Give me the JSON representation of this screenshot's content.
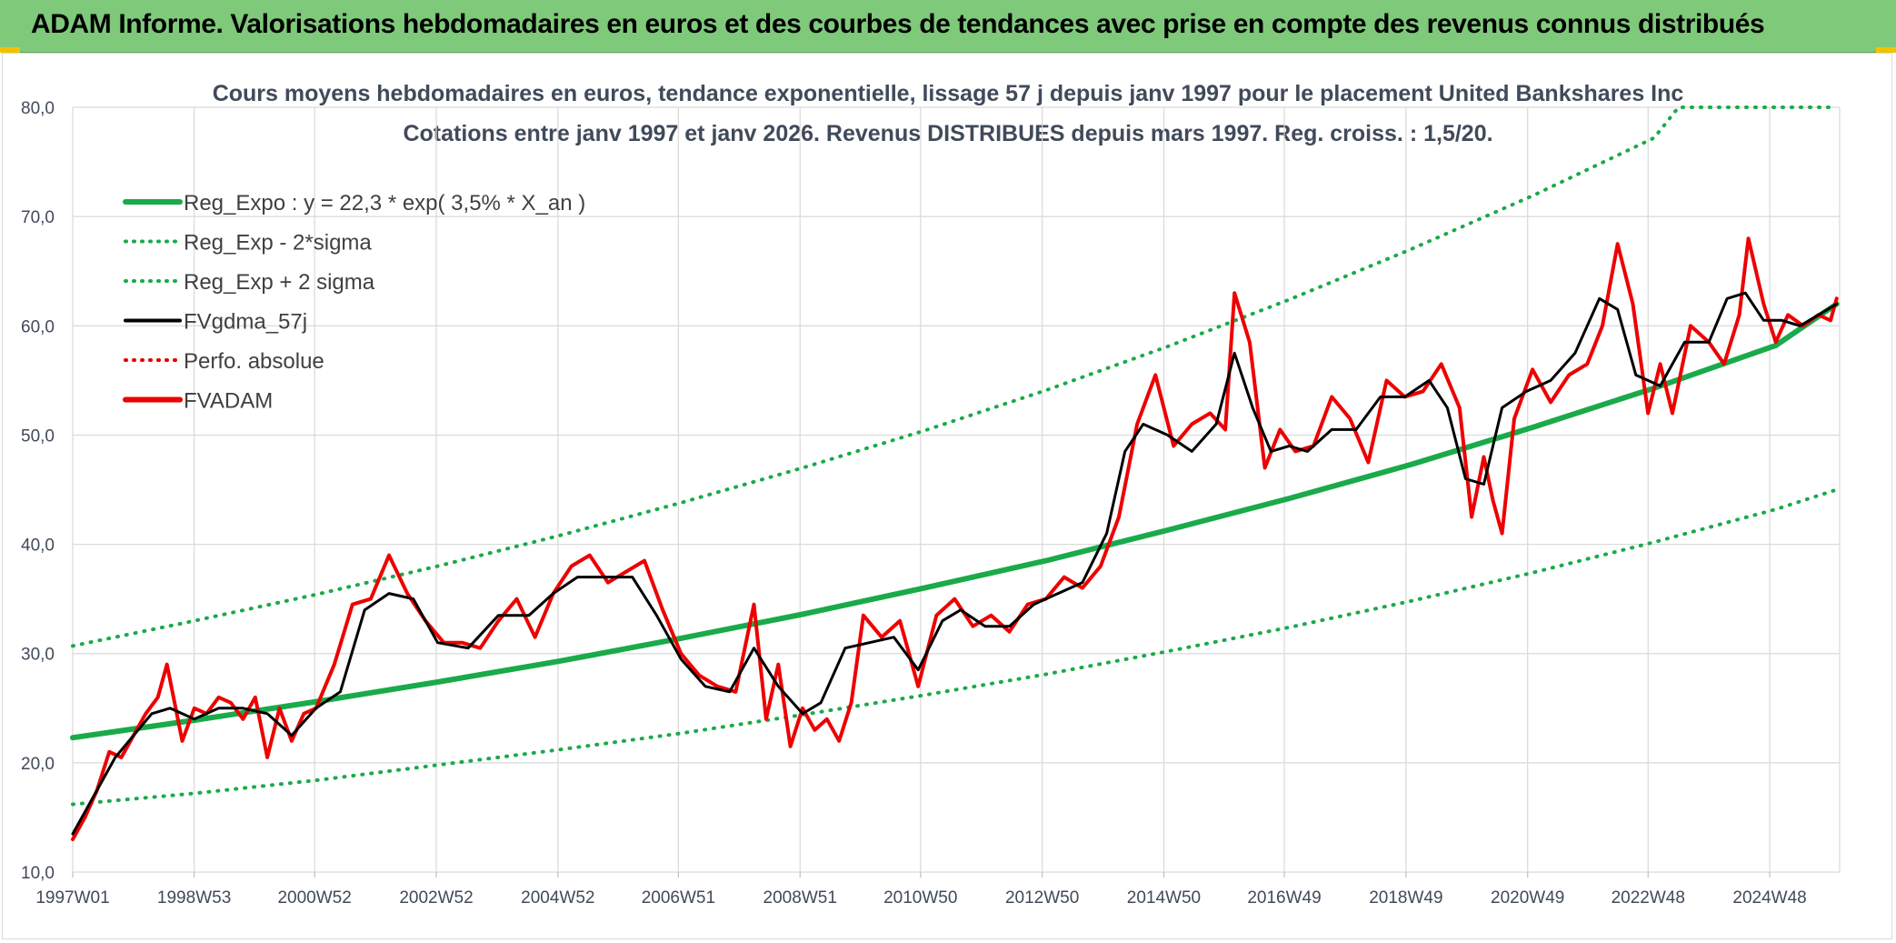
{
  "banner": {
    "title": "ADAM Informe. Valorisations hebdomadaires en euros et des courbes de tendances avec prise en compte des revenus connus distribués"
  },
  "chart_data": {
    "type": "line",
    "title": "Cours moyens hebdomadaires en euros, tendance exponentielle, lissage 57 j depuis janv 1997 pour le placement United Bankshares Inc",
    "subtitle": "Cotations entre janv 1997 et janv 2026. Revenus DISTRIBUES depuis mars 1997. Reg. croiss. : 1,5/20.",
    "xlabel": "",
    "ylabel": "",
    "ylim": [
      10,
      80
    ],
    "xlim": [
      1997.0,
      2026.05
    ],
    "y_ticks": [
      "10,0",
      "20,0",
      "30,0",
      "40,0",
      "50,0",
      "60,0",
      "70,0",
      "80,0"
    ],
    "x_tick_labels": [
      "1997W01",
      "1998W53",
      "2000W52",
      "2002W52",
      "2004W52",
      "2006W51",
      "2008W51",
      "2010W50",
      "2012W50",
      "2014W50",
      "2016W49",
      "2018W49",
      "2020W49",
      "2022W48",
      "2024W48"
    ],
    "grid": true,
    "legend_position": "top-left",
    "legend": [
      {
        "label": "Reg_Expo : y = 22,3 * exp( 3,5% *  X_an )",
        "color": "#1aaa4a",
        "style": "solid-thick"
      },
      {
        "label": "Reg_Exp - 2*sigma",
        "color": "#1aaa4a",
        "style": "dotted"
      },
      {
        "label": "Reg_Exp + 2 sigma",
        "color": "#1aaa4a",
        "style": "dotted"
      },
      {
        "label": "FVgdma_57j",
        "color": "#000000",
        "style": "solid"
      },
      {
        "label": "Perfo. absolue",
        "color": "#e00000",
        "style": "dotted"
      },
      {
        "label": "FVADAM",
        "color": "#ee0000",
        "style": "solid-thick"
      }
    ],
    "series": [
      {
        "name": "Reg_Expo : y = 22,3 * exp( 3,5% *  X_an )",
        "x": [
          1997,
          1999,
          2001,
          2003,
          2005,
          2007,
          2009,
          2011,
          2013,
          2015,
          2017,
          2019,
          2021,
          2023,
          2025,
          2026
        ],
        "values": [
          22.3,
          23.9,
          25.6,
          27.4,
          29.3,
          31.4,
          33.6,
          36.0,
          38.5,
          41.3,
          44.2,
          47.3,
          50.7,
          54.3,
          58.2,
          62.0
        ]
      },
      {
        "name": "Reg_Exp - 2*sigma",
        "x": [
          1997,
          1999,
          2001,
          2003,
          2005,
          2007,
          2009,
          2011,
          2013,
          2015,
          2017,
          2019,
          2021,
          2023,
          2025,
          2026
        ],
        "values": [
          16.2,
          17.2,
          18.4,
          19.8,
          21.2,
          22.7,
          24.4,
          26.2,
          28.1,
          30.2,
          32.4,
          34.8,
          37.4,
          40.2,
          43.2,
          45.0
        ]
      },
      {
        "name": "Reg_Exp + 2 sigma",
        "x": [
          1997,
          1999,
          2001,
          2003,
          2005,
          2007,
          2009,
          2011,
          2013,
          2015,
          2017,
          2019,
          2021,
          2023,
          2023.4,
          2026
        ],
        "values": [
          30.7,
          33.0,
          35.4,
          38.0,
          40.8,
          43.8,
          47.0,
          50.4,
          54.1,
          58.1,
          62.4,
          67.0,
          71.9,
          77.2,
          80.0,
          80.0
        ]
      },
      {
        "name": "FVgdma_57j",
        "x": [
          1997.0,
          1997.3,
          1997.7,
          1998.0,
          1998.3,
          1998.6,
          1999.0,
          1999.4,
          1999.8,
          2000.2,
          2000.6,
          2001.0,
          2001.4,
          2001.8,
          2002.2,
          2002.6,
          2003.0,
          2003.5,
          2004.0,
          2004.5,
          2004.9,
          2005.3,
          2005.8,
          2006.2,
          2006.6,
          2007.0,
          2007.4,
          2007.8,
          2008.2,
          2008.6,
          2009.0,
          2009.3,
          2009.7,
          2010.1,
          2010.5,
          2010.9,
          2011.3,
          2011.6,
          2012.0,
          2012.4,
          2012.8,
          2013.2,
          2013.6,
          2014.0,
          2014.3,
          2014.6,
          2015.0,
          2015.4,
          2015.8,
          2016.1,
          2016.4,
          2016.7,
          2017.0,
          2017.3,
          2017.7,
          2018.1,
          2018.5,
          2018.9,
          2019.3,
          2019.6,
          2019.9,
          2020.2,
          2020.5,
          2020.9,
          2021.3,
          2021.7,
          2022.1,
          2022.4,
          2022.7,
          2023.1,
          2023.5,
          2023.9,
          2024.2,
          2024.5,
          2024.8,
          2025.1,
          2025.4,
          2025.7,
          2026.0
        ],
        "values": [
          13.5,
          16.5,
          20.5,
          22.5,
          24.5,
          25.0,
          24.0,
          25.0,
          25.0,
          24.5,
          22.5,
          25.0,
          26.5,
          34.0,
          35.5,
          35.0,
          31.0,
          30.5,
          33.5,
          33.5,
          35.5,
          37.0,
          37.0,
          37.0,
          33.5,
          29.5,
          27.0,
          26.5,
          30.5,
          27.0,
          24.5,
          25.5,
          30.5,
          31.0,
          31.5,
          28.5,
          33.0,
          34.0,
          32.5,
          32.5,
          34.5,
          35.5,
          36.5,
          41.0,
          48.5,
          51.0,
          50.0,
          48.5,
          51.0,
          57.5,
          52.5,
          48.5,
          49.0,
          48.5,
          50.5,
          50.5,
          53.5,
          53.5,
          55.0,
          52.5,
          46.0,
          45.5,
          52.5,
          54.0,
          55.0,
          57.5,
          62.5,
          61.5,
          55.5,
          54.5,
          58.5,
          58.5,
          62.5,
          63.0,
          60.5,
          60.5,
          60.0,
          61.0,
          62.0
        ]
      },
      {
        "name": "FVADAM",
        "x": [
          1997.0,
          1997.2,
          1997.4,
          1997.6,
          1997.8,
          1998.0,
          1998.2,
          1998.4,
          1998.55,
          1998.8,
          1999.0,
          1999.2,
          1999.4,
          1999.6,
          1999.8,
          2000.0,
          2000.2,
          2000.4,
          2000.6,
          2000.8,
          2001.0,
          2001.3,
          2001.6,
          2001.9,
          2002.2,
          2002.5,
          2002.8,
          2003.1,
          2003.4,
          2003.7,
          2004.0,
          2004.3,
          2004.6,
          2004.9,
          2005.2,
          2005.5,
          2005.8,
          2006.1,
          2006.4,
          2006.7,
          2007.0,
          2007.3,
          2007.6,
          2007.9,
          2008.2,
          2008.4,
          2008.6,
          2008.8,
          2009.0,
          2009.2,
          2009.4,
          2009.6,
          2009.8,
          2010.0,
          2010.3,
          2010.6,
          2010.9,
          2011.2,
          2011.5,
          2011.8,
          2012.1,
          2012.4,
          2012.7,
          2013.0,
          2013.3,
          2013.6,
          2013.9,
          2014.2,
          2014.5,
          2014.8,
          2015.1,
          2015.4,
          2015.7,
          2015.95,
          2016.1,
          2016.35,
          2016.6,
          2016.85,
          2017.1,
          2017.4,
          2017.7,
          2018.0,
          2018.3,
          2018.6,
          2018.9,
          2019.2,
          2019.5,
          2019.8,
          2020.0,
          2020.2,
          2020.35,
          2020.5,
          2020.7,
          2021.0,
          2021.3,
          2021.6,
          2021.9,
          2022.15,
          2022.4,
          2022.65,
          2022.9,
          2023.1,
          2023.3,
          2023.6,
          2023.9,
          2024.15,
          2024.4,
          2024.55,
          2024.8,
          2025.0,
          2025.2,
          2025.45,
          2025.7,
          2025.9,
          2026.0
        ],
        "values": [
          13.0,
          15.0,
          17.5,
          21.0,
          20.5,
          22.5,
          24.5,
          26.0,
          29.0,
          22.0,
          25.0,
          24.5,
          26.0,
          25.5,
          24.0,
          26.0,
          20.5,
          25.0,
          22.0,
          24.5,
          25.0,
          29.0,
          34.5,
          35.0,
          39.0,
          35.5,
          33.0,
          31.0,
          31.0,
          30.5,
          33.0,
          35.0,
          31.5,
          35.5,
          38.0,
          39.0,
          36.5,
          37.5,
          38.5,
          34.0,
          30.0,
          28.0,
          27.0,
          26.5,
          34.5,
          24.0,
          29.0,
          21.5,
          25.0,
          23.0,
          24.0,
          22.0,
          25.5,
          33.5,
          31.5,
          33.0,
          27.0,
          33.5,
          35.0,
          32.5,
          33.5,
          32.0,
          34.5,
          35.0,
          37.0,
          36.0,
          38.0,
          42.5,
          51.0,
          55.5,
          49.0,
          51.0,
          52.0,
          50.5,
          63.0,
          58.5,
          47.0,
          50.5,
          48.5,
          49.0,
          53.5,
          51.5,
          47.5,
          55.0,
          53.5,
          54.0,
          56.5,
          52.5,
          42.5,
          48.0,
          44.0,
          41.0,
          51.5,
          56.0,
          53.0,
          55.5,
          56.5,
          60.0,
          67.5,
          62.0,
          52.0,
          56.5,
          52.0,
          60.0,
          58.5,
          56.5,
          61.0,
          68.0,
          62.0,
          58.5,
          61.0,
          60.0,
          61.0,
          60.5,
          62.5
        ]
      }
    ]
  }
}
